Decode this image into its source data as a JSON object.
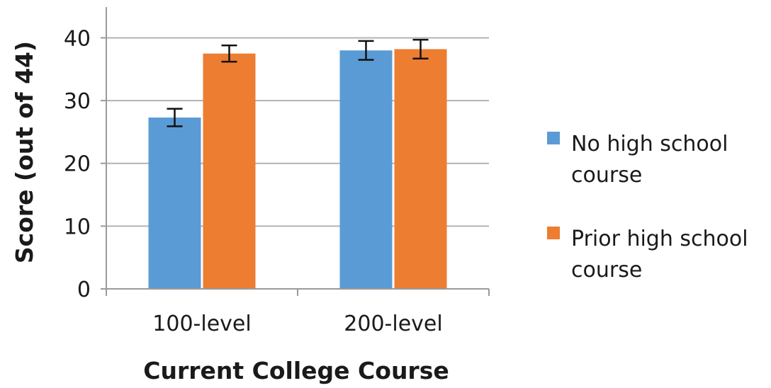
{
  "chart_data": {
    "type": "bar",
    "categories": [
      "100-level",
      "200-level"
    ],
    "series": [
      {
        "name": "No high school course",
        "legend_lines": [
          "No high school",
          "course"
        ],
        "color": "#5b9bd5",
        "values": [
          27.3,
          38.0
        ],
        "error": [
          1.4,
          1.5
        ]
      },
      {
        "name": "Prior high school course",
        "legend_lines": [
          "Prior high school",
          "course"
        ],
        "color": "#ed7d31",
        "values": [
          37.5,
          38.2
        ],
        "error": [
          1.3,
          1.5
        ]
      }
    ],
    "xlabel": "Current College Course",
    "ylabel": "Score (out of 44)",
    "ylim": [
      0,
      44
    ],
    "yticks": [
      0,
      10,
      20,
      30,
      40
    ],
    "grid": true,
    "legend": "right"
  }
}
